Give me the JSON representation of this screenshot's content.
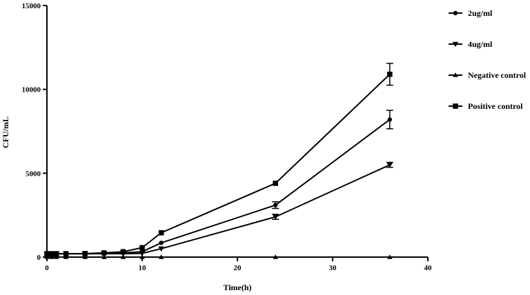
{
  "chart_data": {
    "type": "line",
    "xlabel": "Time(h)",
    "ylabel": "CFU/mL",
    "xlim": [
      0,
      40
    ],
    "ylim": [
      0,
      15000
    ],
    "x_ticks": [
      0,
      10,
      20,
      30,
      40
    ],
    "y_ticks": [
      0,
      5000,
      10000,
      15000
    ],
    "x_tick_labels": [
      "0",
      "10",
      "20",
      "30",
      "40"
    ],
    "y_tick_labels": [
      "0",
      "5000",
      "10000",
      "15000"
    ],
    "grid": false,
    "legend_position": "right",
    "series": [
      {
        "name": "2ug/ml",
        "marker": "circle",
        "x": [
          0,
          0.5,
          1,
          2,
          4,
          6,
          8,
          10,
          12,
          24,
          36
        ],
        "y": [
          200,
          200,
          200,
          200,
          200,
          210,
          250,
          320,
          850,
          3100,
          8200
        ],
        "err": [
          0,
          0,
          0,
          0,
          0,
          0,
          0,
          0,
          0,
          200,
          550
        ]
      },
      {
        "name": "4ug/ml",
        "marker": "triangle-down",
        "x": [
          0,
          0.5,
          1,
          2,
          4,
          6,
          8,
          10,
          12,
          24,
          36
        ],
        "y": [
          200,
          200,
          200,
          200,
          200,
          200,
          200,
          220,
          500,
          2400,
          5500
        ],
        "err": [
          0,
          0,
          0,
          0,
          0,
          0,
          0,
          0,
          0,
          150,
          150
        ]
      },
      {
        "name": "Negative control",
        "marker": "triangle-up",
        "x": [
          0,
          0.5,
          1,
          2,
          4,
          6,
          8,
          10,
          12,
          24,
          36
        ],
        "y": [
          0,
          0,
          0,
          0,
          0,
          0,
          0,
          0,
          0,
          0,
          0
        ],
        "err": [
          0,
          0,
          0,
          0,
          0,
          0,
          0,
          0,
          0,
          0,
          0
        ]
      },
      {
        "name": "Positive control",
        "marker": "square",
        "x": [
          0,
          0.5,
          1,
          2,
          4,
          6,
          8,
          10,
          12,
          24,
          36
        ],
        "y": [
          200,
          200,
          200,
          200,
          210,
          250,
          320,
          560,
          1450,
          4400,
          10900
        ],
        "err": [
          0,
          0,
          0,
          0,
          0,
          0,
          0,
          0,
          0,
          0,
          650
        ]
      }
    ]
  }
}
